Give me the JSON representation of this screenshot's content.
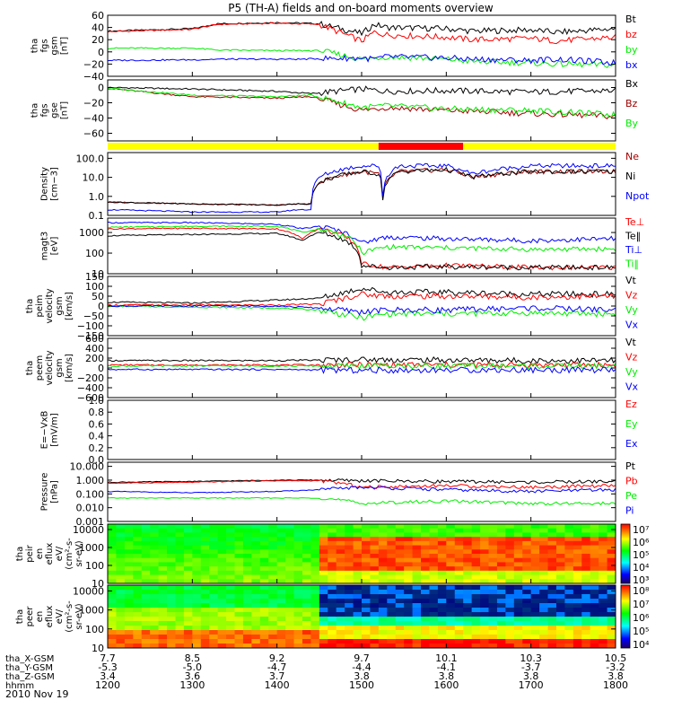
{
  "title": "P5 (TH-A) fields and on-board moments overview",
  "date_label": "2010 Nov 19",
  "colors": {
    "black": "#000000",
    "red": "#ff0000",
    "green": "#00ee00",
    "blue": "#0000ff",
    "darkred": "#a00000",
    "yellow": "#ffff00",
    "barred": "#ff0000"
  },
  "x_axis": {
    "rows": [
      {
        "label": "tha_X-GSM",
        "values": [
          "7.7",
          "8.5",
          "9.2",
          "9.7",
          "10.1",
          "10.3",
          "10.5"
        ]
      },
      {
        "label": "tha_Y-GSM",
        "values": [
          "-5.3",
          "-5.0",
          "-4.7",
          "-4.4",
          "-4.1",
          "-3.7",
          "-3.2"
        ]
      },
      {
        "label": "tha_Z-GSM",
        "values": [
          "3.4",
          "3.6",
          "3.7",
          "3.8",
          "3.8",
          "3.8",
          "3.8"
        ]
      },
      {
        "label": "hhmm",
        "values": [
          "1200",
          "1300",
          "1400",
          "1500",
          "1600",
          "1700",
          "1800"
        ]
      }
    ]
  },
  "chart_data": [
    {
      "type": "line",
      "ylabel": [
        "tha",
        "fgs",
        "gsm",
        "[nT]"
      ],
      "yscale": "linear",
      "ylim": [
        -40,
        60
      ],
      "yticks": [
        "60",
        "40",
        "20",
        "0",
        "−20",
        "−40"
      ],
      "legend": [
        {
          "label": "Bt",
          "color": "#000000"
        },
        {
          "label": "bz",
          "color": "#ff0000"
        },
        {
          "label": "by",
          "color": "#00ee00"
        },
        {
          "label": "bx",
          "color": "#0000ff"
        }
      ],
      "series": [
        {
          "name": "Bt",
          "color": "#000000",
          "x": [
            1200,
            1300,
            1330,
            1400,
            1430,
            1450,
            1500,
            1515,
            1530,
            1600,
            1630,
            1700,
            1730,
            1800
          ],
          "y": [
            34,
            38,
            46,
            48,
            47,
            46,
            30,
            45,
            40,
            38,
            34,
            36,
            32,
            38
          ]
        },
        {
          "name": "bz",
          "color": "#ff0000",
          "x": [
            1200,
            1300,
            1330,
            1400,
            1430,
            1450,
            1500,
            1515,
            1530,
            1600,
            1630,
            1700,
            1730,
            1800
          ],
          "y": [
            33,
            37,
            45,
            47,
            46,
            45,
            18,
            32,
            28,
            24,
            20,
            22,
            18,
            24
          ]
        },
        {
          "name": "by",
          "color": "#00ee00",
          "x": [
            1200,
            1300,
            1330,
            1400,
            1430,
            1450,
            1500,
            1515,
            1530,
            1600,
            1630,
            1700,
            1730,
            1800
          ],
          "y": [
            6,
            6,
            3,
            2,
            2,
            2,
            -12,
            -10,
            -8,
            -12,
            -16,
            -18,
            -20,
            -22
          ]
        },
        {
          "name": "bx",
          "color": "#0000ff",
          "x": [
            1200,
            1300,
            1330,
            1400,
            1430,
            1450,
            1500,
            1515,
            1530,
            1600,
            1630,
            1700,
            1730,
            1800
          ],
          "y": [
            -14,
            -13,
            -12,
            -12,
            -12,
            -11,
            -10,
            -12,
            -8,
            -10,
            -12,
            -14,
            -12,
            -18
          ]
        }
      ]
    },
    {
      "type": "line",
      "ylabel": [
        "tha",
        "fgs",
        "gse",
        "[nT]"
      ],
      "yscale": "linear",
      "ylim": [
        -70,
        10
      ],
      "yticks": [
        "0",
        "−20",
        "−40",
        "−60"
      ],
      "legend": [
        {
          "label": "Bx",
          "color": "#000000"
        },
        {
          "label": "Bz",
          "color": "#a00000"
        },
        {
          "label": "By",
          "color": "#00ee00"
        }
      ],
      "series": [
        {
          "name": "Bx",
          "color": "#000000",
          "x": [
            1200,
            1300,
            1400,
            1440,
            1500,
            1530,
            1600,
            1700,
            1800
          ],
          "y": [
            0,
            -2,
            -5,
            -8,
            -2,
            -5,
            -4,
            -6,
            -4
          ]
        },
        {
          "name": "Bz",
          "color": "#a00000",
          "x": [
            1200,
            1300,
            1400,
            1440,
            1500,
            1530,
            1600,
            1700,
            1800
          ],
          "y": [
            -1,
            -12,
            -14,
            -12,
            -30,
            -26,
            -30,
            -34,
            -38
          ]
        },
        {
          "name": "By",
          "color": "#00ee00",
          "x": [
            1200,
            1300,
            1400,
            1440,
            1500,
            1530,
            1600,
            1700,
            1800
          ],
          "y": [
            -1,
            -10,
            -12,
            -10,
            -26,
            -24,
            -28,
            -30,
            -36
          ]
        }
      ]
    },
    {
      "type": "bar",
      "role": "status bar",
      "segments": [
        {
          "from": 1200,
          "to": 1520,
          "color": "#ffff00"
        },
        {
          "from": 1520,
          "to": 1620,
          "color": "#ff0000"
        },
        {
          "from": 1620,
          "to": 1800,
          "color": "#ffff00"
        }
      ]
    },
    {
      "type": "line",
      "ylabel": [
        "Density",
        "[cm−3]"
      ],
      "yscale": "log",
      "ylim": [
        0.1,
        200
      ],
      "yticks": [
        "100.0",
        "10.0",
        "1.0",
        "0.1"
      ],
      "legend": [
        {
          "label": "Ne",
          "color": "#a00000"
        },
        {
          "label": "Ni",
          "color": "#000000"
        },
        {
          "label": "Npot",
          "color": "#0000ff"
        }
      ],
      "series": [
        {
          "name": "Ne",
          "color": "#a00000",
          "x": [
            1200,
            1300,
            1400,
            1425,
            1440,
            1450,
            1500,
            1520,
            1525,
            1545,
            1600,
            1630,
            1700,
            1800
          ],
          "y": [
            0.5,
            0.4,
            0.35,
            0.4,
            0.4,
            5,
            20,
            15,
            0.8,
            20,
            25,
            10,
            20,
            20
          ]
        },
        {
          "name": "Ni",
          "color": "#000000",
          "x": [
            1200,
            1300,
            1400,
            1425,
            1440,
            1450,
            1500,
            1520,
            1525,
            1545,
            1600,
            1630,
            1700,
            1800
          ],
          "y": [
            0.5,
            0.4,
            0.35,
            0.4,
            0.4,
            5,
            20,
            15,
            0.8,
            20,
            25,
            10,
            20,
            20
          ]
        },
        {
          "name": "Npot",
          "color": "#0000ff",
          "x": [
            1200,
            1300,
            1400,
            1425,
            1440,
            1450,
            1500,
            1520,
            1525,
            1545,
            1600,
            1630,
            1700,
            1800
          ],
          "y": [
            0.2,
            0.15,
            0.15,
            0.2,
            0.2,
            10,
            40,
            40,
            1,
            40,
            40,
            15,
            40,
            40
          ]
        }
      ]
    },
    {
      "type": "line",
      "ylabel": [
        "magt3",
        "[eV]"
      ],
      "yscale": "log",
      "ylim": [
        10,
        5000
      ],
      "yticks": [
        "1000",
        "100",
        "10"
      ],
      "legend": [
        {
          "label": "Te⊥",
          "color": "#ff0000"
        },
        {
          "label": "Te‖",
          "color": "#000000"
        },
        {
          "label": "Ti⊥",
          "color": "#0000ff"
        },
        {
          "label": "Ti‖",
          "color": "#00ee00"
        }
      ],
      "series": [
        {
          "name": "Te⊥",
          "color": "#ff0000",
          "x": [
            1200,
            1300,
            1400,
            1430,
            1450,
            1500,
            1530,
            1600,
            1700,
            1800
          ],
          "y": [
            1500,
            1600,
            1500,
            500,
            1500,
            30,
            20,
            25,
            20,
            20
          ]
        },
        {
          "name": "Te‖",
          "color": "#000000",
          "x": [
            1200,
            1300,
            1400,
            1430,
            1450,
            1500,
            1530,
            1600,
            1700,
            1800
          ],
          "y": [
            700,
            800,
            900,
            400,
            1000,
            25,
            20,
            22,
            20,
            20
          ]
        },
        {
          "name": "Ti⊥",
          "color": "#0000ff",
          "x": [
            1200,
            1300,
            1400,
            1430,
            1450,
            1500,
            1530,
            1600,
            1700,
            1800
          ],
          "y": [
            3000,
            3000,
            2500,
            1500,
            2000,
            300,
            600,
            500,
            400,
            500
          ]
        },
        {
          "name": "Ti‖",
          "color": "#00ee00",
          "x": [
            1200,
            1300,
            1400,
            1430,
            1450,
            1500,
            1530,
            1600,
            1700,
            1800
          ],
          "y": [
            1800,
            2000,
            2000,
            1000,
            1500,
            100,
            200,
            180,
            150,
            160
          ]
        }
      ]
    },
    {
      "type": "line",
      "ylabel": [
        "tha",
        "peim",
        "velocity",
        "gsm",
        "[km/s]"
      ],
      "yscale": "linear",
      "ylim": [
        -150,
        150
      ],
      "yticks": [
        "150",
        "100",
        "50",
        "0",
        "−50",
        "−100",
        "−150"
      ],
      "legend": [
        {
          "label": "Vt",
          "color": "#000000"
        },
        {
          "label": "Vz",
          "color": "#ff0000"
        },
        {
          "label": "Vy",
          "color": "#00ee00"
        },
        {
          "label": "Vx",
          "color": "#0000ff"
        }
      ],
      "series": [
        {
          "name": "Vt",
          "color": "#000000",
          "x": [
            1200,
            1300,
            1400,
            1450,
            1500,
            1530,
            1600,
            1700,
            1800
          ],
          "y": [
            20,
            15,
            30,
            40,
            90,
            70,
            70,
            60,
            60
          ]
        },
        {
          "name": "Vz",
          "color": "#ff0000",
          "x": [
            1200,
            1300,
            1400,
            1450,
            1500,
            1530,
            1600,
            1700,
            1800
          ],
          "y": [
            5,
            5,
            5,
            10,
            60,
            50,
            50,
            45,
            50
          ]
        },
        {
          "name": "Vy",
          "color": "#00ee00",
          "x": [
            1200,
            1300,
            1400,
            1450,
            1500,
            1530,
            1600,
            1700,
            1800
          ],
          "y": [
            0,
            -5,
            -10,
            -20,
            -60,
            -40,
            -40,
            -35,
            -40
          ]
        },
        {
          "name": "Vx",
          "color": "#0000ff",
          "x": [
            1200,
            1300,
            1400,
            1450,
            1500,
            1530,
            1600,
            1700,
            1800
          ],
          "y": [
            0,
            0,
            0,
            -10,
            -30,
            -20,
            -20,
            -10,
            -20
          ]
        }
      ]
    },
    {
      "type": "line",
      "ylabel": [
        "tha",
        "peem",
        "velocity",
        "gsm",
        "[km/s]"
      ],
      "yscale": "linear",
      "ylim": [
        -600,
        600
      ],
      "yticks": [
        "600",
        "400",
        "200",
        "0",
        "−200",
        "−400",
        "−600"
      ],
      "legend": [
        {
          "label": "Vt",
          "color": "#000000"
        },
        {
          "label": "Vz",
          "color": "#ff0000"
        },
        {
          "label": "Vy",
          "color": "#00ee00"
        },
        {
          "label": "Vx",
          "color": "#0000ff"
        }
      ],
      "series": [
        {
          "name": "Vt",
          "color": "#000000",
          "x": [
            1200,
            1300,
            1400,
            1500,
            1600,
            1700,
            1800
          ],
          "y": [
            150,
            150,
            150,
            170,
            160,
            150,
            150
          ]
        },
        {
          "name": "Vz",
          "color": "#ff0000",
          "x": [
            1200,
            1300,
            1400,
            1500,
            1600,
            1700,
            1800
          ],
          "y": [
            60,
            60,
            60,
            60,
            60,
            60,
            60
          ]
        },
        {
          "name": "Vy",
          "color": "#00ee00",
          "x": [
            1200,
            1300,
            1400,
            1500,
            1600,
            1700,
            1800
          ],
          "y": [
            40,
            40,
            40,
            40,
            40,
            40,
            40
          ]
        },
        {
          "name": "Vx",
          "color": "#0000ff",
          "x": [
            1200,
            1300,
            1400,
            1500,
            1600,
            1700,
            1800
          ],
          "y": [
            -30,
            -30,
            -30,
            -50,
            -40,
            -40,
            -40
          ]
        }
      ]
    },
    {
      "type": "line",
      "ylabel": [
        "E=−VxB",
        "[mV/m]"
      ],
      "yscale": "linear",
      "ylim": [
        0,
        1
      ],
      "yticks": [
        "1.0",
        "0.8",
        "0.6",
        "0.4",
        "0.2",
        "0.0"
      ],
      "legend": [
        {
          "label": "Ez",
          "color": "#ff0000"
        },
        {
          "label": "Ey",
          "color": "#00ee00"
        },
        {
          "label": "Ex",
          "color": "#0000ff"
        }
      ],
      "series": []
    },
    {
      "type": "line",
      "ylabel": [
        "Pressure",
        "[nPa]"
      ],
      "yscale": "log",
      "ylim": [
        0.001,
        20
      ],
      "yticks": [
        "10.000",
        "1.000",
        "0.100",
        "0.010",
        "0.001"
      ],
      "legend": [
        {
          "label": "Pt",
          "color": "#000000"
        },
        {
          "label": "Pb",
          "color": "#ff0000"
        },
        {
          "label": "Pe",
          "color": "#00ee00"
        },
        {
          "label": "Pi",
          "color": "#0000ff"
        }
      ],
      "series": [
        {
          "name": "Pt",
          "color": "#000000",
          "x": [
            1200,
            1300,
            1400,
            1450,
            1500,
            1600,
            1700,
            1800
          ],
          "y": [
            0.7,
            0.8,
            1.0,
            1.0,
            0.9,
            0.8,
            0.7,
            0.8
          ]
        },
        {
          "name": "Pb",
          "color": "#ff0000",
          "x": [
            1200,
            1300,
            1400,
            1450,
            1500,
            1600,
            1700,
            1800
          ],
          "y": [
            0.6,
            0.7,
            0.9,
            0.9,
            0.3,
            0.4,
            0.3,
            0.4
          ]
        },
        {
          "name": "Pe",
          "color": "#00ee00",
          "x": [
            1200,
            1300,
            1400,
            1450,
            1500,
            1600,
            1700,
            1800
          ],
          "y": [
            0.05,
            0.05,
            0.05,
            0.05,
            0.02,
            0.03,
            0.02,
            0.02
          ]
        },
        {
          "name": "Pi",
          "color": "#0000ff",
          "x": [
            1200,
            1300,
            1400,
            1450,
            1500,
            1600,
            1700,
            1800
          ],
          "y": [
            0.15,
            0.12,
            0.15,
            0.2,
            0.3,
            0.2,
            0.15,
            0.2
          ]
        }
      ]
    },
    {
      "type": "heatmap",
      "ylabel": [
        "tha",
        "peir",
        "en",
        "eflux",
        "eV/",
        "(cm²-s-",
        "sr-eV)"
      ],
      "yscale": "log",
      "ylim": [
        10,
        20000
      ],
      "yticks": [
        "10000",
        "1000",
        "100",
        "10"
      ],
      "colorbar": {
        "labels": [
          "10⁷",
          "10⁶",
          "10⁵",
          "10⁴",
          "10³"
        ]
      }
    },
    {
      "type": "heatmap",
      "ylabel": [
        "tha",
        "peer",
        "en",
        "eflux",
        "eV/",
        "(cm²-s-",
        "sr-eV)"
      ],
      "yscale": "log",
      "ylim": [
        10,
        20000
      ],
      "yticks": [
        "10000",
        "1000",
        "100",
        "10"
      ],
      "colorbar": {
        "labels": [
          "10⁸",
          "10⁷",
          "10⁶",
          "10⁵",
          "10⁴"
        ]
      }
    }
  ]
}
